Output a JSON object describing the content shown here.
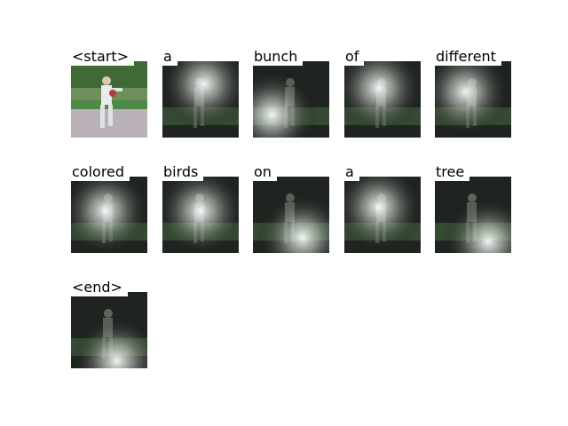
{
  "panels": [
    {
      "token": "<start>",
      "kind": "photo",
      "hx": 0.45,
      "hy": 0.35
    },
    {
      "token": "a",
      "kind": "attention",
      "hx": 0.55,
      "hy": 0.3
    },
    {
      "token": "bunch",
      "kind": "attention",
      "hx": 0.25,
      "hy": 0.7
    },
    {
      "token": "of",
      "kind": "attention",
      "hx": 0.45,
      "hy": 0.35
    },
    {
      "token": "different",
      "kind": "attention",
      "hx": 0.4,
      "hy": 0.4
    },
    {
      "token": "colored",
      "kind": "attention",
      "hx": 0.45,
      "hy": 0.45
    },
    {
      "token": "birds",
      "kind": "attention",
      "hx": 0.5,
      "hy": 0.45
    },
    {
      "token": "on",
      "kind": "attention",
      "hx": 0.65,
      "hy": 0.8
    },
    {
      "token": "a",
      "kind": "attention",
      "hx": 0.45,
      "hy": 0.4
    },
    {
      "token": "tree",
      "kind": "attention",
      "hx": 0.7,
      "hy": 0.85
    },
    {
      "token": "<end>",
      "kind": "attention",
      "hx": 0.6,
      "hy": 0.9
    }
  ],
  "colors": {
    "background": "#ffffff",
    "text": "#000000",
    "grass": "#4f7a4a",
    "dark": "#1f2420"
  }
}
